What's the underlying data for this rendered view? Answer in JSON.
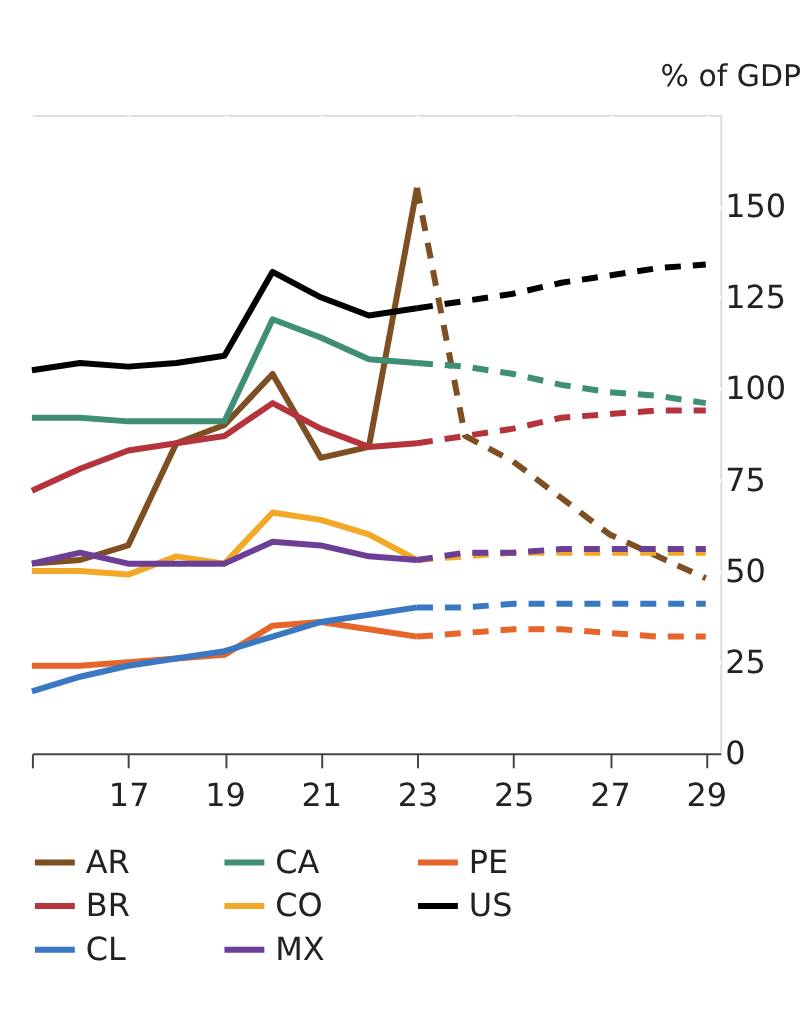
{
  "chart_data": {
    "type": "line",
    "ylabel": "% of GDP",
    "x": [
      2015,
      2016,
      2017,
      2018,
      2019,
      2020,
      2021,
      2022,
      2023
    ],
    "xlim": [
      2015,
      2029.3
    ],
    "ylim": [
      0,
      175
    ],
    "xticks": [
      {
        "value": 2015,
        "label": null
      },
      {
        "value": 2017,
        "label": "17"
      },
      {
        "value": 2019,
        "label": "19"
      },
      {
        "value": 2021,
        "label": "21"
      },
      {
        "value": 2023,
        "label": "23"
      },
      {
        "value": 2025,
        "label": "25"
      },
      {
        "value": 2027,
        "label": "27"
      },
      {
        "value": 2029,
        "label": "29"
      }
    ],
    "yticks": [
      0,
      25,
      50,
      75,
      100,
      125,
      150
    ],
    "grid": true,
    "legend": "bottom",
    "marker": "none",
    "series": [
      {
        "name": "AR",
        "color": "#7f4f24",
        "line_style": "solid",
        "values": [
          52,
          53,
          57,
          85,
          90,
          104,
          81,
          84,
          155
        ]
      },
      {
        "name": "CA",
        "color": "#3f8f74",
        "line_style": "solid",
        "values": [
          92,
          92,
          91,
          91,
          91,
          119,
          114,
          108,
          107
        ]
      },
      {
        "name": "PE",
        "color": "#e5652a",
        "line_style": "solid",
        "values": [
          24,
          24,
          25,
          26,
          27,
          35,
          36,
          34,
          32
        ]
      },
      {
        "name": "BR",
        "color": "#b5343c",
        "line_style": "solid",
        "values": [
          72,
          78,
          83,
          85,
          87,
          96,
          89,
          84,
          85
        ]
      },
      {
        "name": "CO",
        "color": "#f2a928",
        "line_style": "solid",
        "values": [
          50,
          50,
          49,
          54,
          52,
          66,
          64,
          60,
          53
        ]
      },
      {
        "name": "US",
        "color": "#000000",
        "line_style": "solid",
        "values": [
          105,
          107,
          106,
          107,
          109,
          132,
          125,
          120,
          122
        ]
      },
      {
        "name": "CL",
        "color": "#3a78c4",
        "line_style": "solid",
        "values": [
          17,
          21,
          24,
          26,
          28,
          32,
          36,
          38,
          40
        ]
      },
      {
        "name": "MX",
        "color": "#6b3f96",
        "line_style": "solid",
        "values": [
          52,
          55,
          52,
          52,
          52,
          58,
          57,
          54,
          53
        ]
      },
      {
        "color": "#7f4f24",
        "line_style": "dashed",
        "x": [
          2023,
          2024,
          2025,
          2026,
          2027,
          2028,
          2029
        ],
        "values": [
          155,
          87,
          80,
          70,
          60,
          54,
          48
        ]
      },
      {
        "color": "#3f8f74",
        "line_style": "dashed",
        "x": [
          2023,
          2024,
          2025,
          2026,
          2027,
          2028,
          2029
        ],
        "values": [
          107,
          106,
          104,
          101,
          99,
          98,
          96
        ]
      },
      {
        "color": "#e5652a",
        "line_style": "dashed",
        "x": [
          2023,
          2024,
          2025,
          2026,
          2027,
          2028,
          2029
        ],
        "values": [
          32,
          33,
          34,
          34,
          33,
          32,
          32
        ]
      },
      {
        "color": "#b5343c",
        "line_style": "dashed",
        "x": [
          2023,
          2024,
          2025,
          2026,
          2027,
          2028,
          2029
        ],
        "values": [
          85,
          87,
          89,
          92,
          93,
          94,
          94
        ]
      },
      {
        "color": "#f2a928",
        "line_style": "dashed",
        "x": [
          2023,
          2024,
          2025,
          2026,
          2027,
          2028,
          2029
        ],
        "values": [
          53,
          54,
          55,
          55,
          55,
          55,
          55
        ]
      },
      {
        "color": "#000000",
        "line_style": "dashed",
        "x": [
          2023,
          2024,
          2025,
          2026,
          2027,
          2028,
          2029
        ],
        "values": [
          122,
          124,
          126,
          129,
          131,
          133,
          134
        ]
      },
      {
        "color": "#3a78c4",
        "line_style": "dashed",
        "x": [
          2023,
          2024,
          2025,
          2026,
          2027,
          2028,
          2029
        ],
        "values": [
          40,
          40,
          41,
          41,
          41,
          41,
          41
        ]
      },
      {
        "color": "#6b3f96",
        "line_style": "dashed",
        "x": [
          2023,
          2024,
          2025,
          2026,
          2027,
          2028,
          2029
        ],
        "values": [
          53,
          55,
          55,
          56,
          56,
          56,
          56
        ]
      }
    ]
  }
}
